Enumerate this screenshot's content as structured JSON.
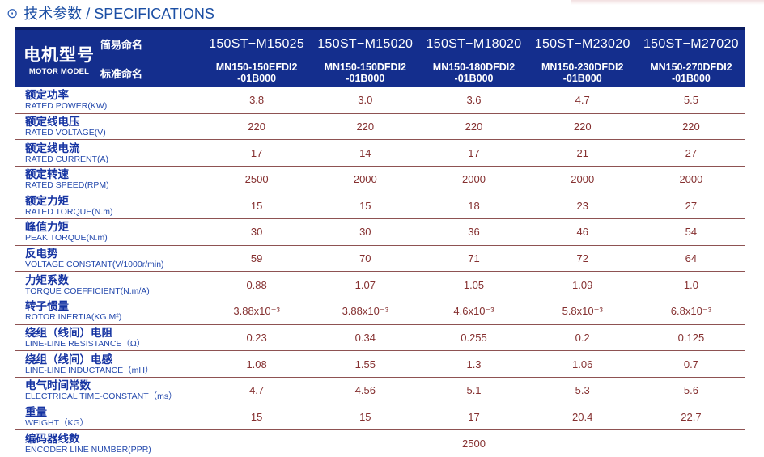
{
  "page": {
    "title_icon": "⊙",
    "title": "技术参数 / SPECIFICATIONS"
  },
  "colors": {
    "header_background": "#142e8d",
    "header_top_stripe": "#0a1b5f",
    "title_blue": "#1c4fa4",
    "label_blue": "#1634a2",
    "value_maroon": "#853030",
    "separator_maroon": "#8e5252"
  },
  "table": {
    "header": {
      "model_cn": "电机型号",
      "model_en": "MOTOR MODEL",
      "simple_label": "简易命名",
      "standard_label": "标准命名",
      "columns": [
        {
          "simple": "150ST−M15025",
          "standard_line1": "MN150-150EFDI2",
          "standard_line2": "-01B000"
        },
        {
          "simple": "150ST−M15020",
          "standard_line1": "MN150-150DFDI2",
          "standard_line2": "-01B000"
        },
        {
          "simple": "150ST−M18020",
          "standard_line1": "MN150-180DFDI2",
          "standard_line2": "-01B000"
        },
        {
          "simple": "150ST−M23020",
          "standard_line1": "MN150-230DFDI2",
          "standard_line2": "-01B000"
        },
        {
          "simple": "150ST−M27020",
          "standard_line1": "MN150-270DFDI2",
          "standard_line2": "-01B000"
        }
      ]
    },
    "rows": [
      {
        "cn": "额定功率",
        "en": "RATED POWER(KW)",
        "values": [
          "3.8",
          "3.0",
          "3.6",
          "4.7",
          "5.5"
        ]
      },
      {
        "cn": "额定线电压",
        "en": "RATED VOLTAGE(V)",
        "values": [
          "220",
          "220",
          "220",
          "220",
          "220"
        ]
      },
      {
        "cn": "额定线电流",
        "en": "RATED CURRENT(A)",
        "values": [
          "17",
          "14",
          "17",
          "21",
          "27"
        ]
      },
      {
        "cn": "额定转速",
        "en": "RATED SPEED(RPM)",
        "values": [
          "2500",
          "2000",
          "2000",
          "2000",
          "2000"
        ]
      },
      {
        "cn": "额定力矩",
        "en": "RATED TORQUE(N.m)",
        "values": [
          "15",
          "15",
          "18",
          "23",
          "27"
        ]
      },
      {
        "cn": "峰值力矩",
        "en": "PEAK TORQUE(N.m)",
        "values": [
          "30",
          "30",
          "36",
          "46",
          "54"
        ]
      },
      {
        "cn": "反电势",
        "en": "VOLTAGE CONSTANT(V/1000r/min)",
        "values": [
          "59",
          "70",
          "71",
          "72",
          "64"
        ]
      },
      {
        "cn": "力矩系数",
        "en": "TORQUE COEFFICIENT(N.m/A)",
        "values": [
          "0.88",
          "1.07",
          "1.05",
          "1.09",
          "1.0"
        ]
      },
      {
        "cn": "转子惯量",
        "en": "ROTOR INERTIA(KG.M²)",
        "values": [
          "3.88x10⁻³",
          "3.88x10⁻³",
          "4.6x10⁻³",
          "5.8x10⁻³",
          "6.8x10⁻³"
        ]
      },
      {
        "cn": "绕组（线间）电阻",
        "en": "LINE-LINE RESISTANCE（Ω）",
        "values": [
          "0.23",
          "0.34",
          "0.255",
          "0.2",
          "0.125"
        ]
      },
      {
        "cn": "绕组（线间）电感",
        "en": "LINE-LINE INDUCTANCE（mH）",
        "values": [
          "1.08",
          "1.55",
          "1.3",
          "1.06",
          "0.7"
        ]
      },
      {
        "cn": "电气时间常数",
        "en": "ELECTRICAL TIME-CONSTANT（ms）",
        "values": [
          "4.7",
          "4.56",
          "5.1",
          "5.3",
          "5.6"
        ]
      },
      {
        "cn": "重量",
        "en": "WEIGHT（KG）",
        "values": [
          "15",
          "15",
          "17",
          "20.4",
          "22.7"
        ]
      },
      {
        "cn": "编码器线数",
        "en": "ENCODER LINE NUMBER(PPR)",
        "values": [
          "",
          "",
          "2500",
          "",
          ""
        ]
      }
    ]
  }
}
